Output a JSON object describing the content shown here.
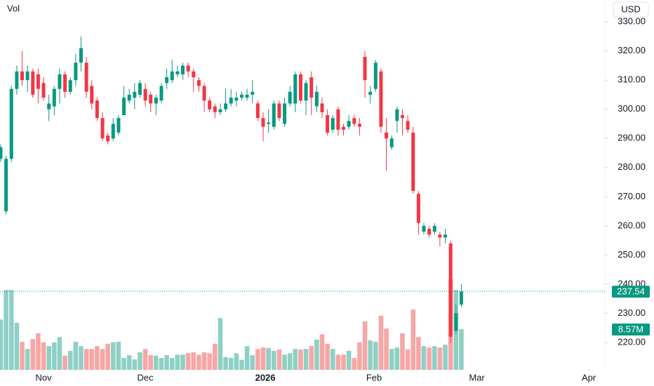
{
  "chart_data": {
    "type": "candlestick",
    "legend_label": "Vol",
    "currency": "USD",
    "up_color": "#089981",
    "down_color": "#f23645",
    "volume_up_color": "#8fd0c5",
    "volume_down_color": "#f7a6a6",
    "open": [
      283,
      265,
      283,
      307,
      313,
      310,
      313,
      312,
      309,
      300,
      301,
      307,
      312,
      306,
      310,
      316,
      316,
      308,
      303,
      297,
      291,
      290,
      292,
      298,
      303,
      304,
      305,
      307,
      305,
      302,
      303,
      309,
      310,
      312,
      312,
      315,
      313,
      310,
      308,
      303,
      301,
      299,
      300,
      302,
      303,
      304,
      304,
      305,
      302,
      297,
      295,
      294,
      302,
      295,
      302,
      302,
      312,
      303,
      311,
      301,
      302,
      298,
      293,
      300,
      294,
      294,
      297,
      295,
      318,
      305,
      307,
      313,
      292,
      287,
      296,
      298,
      296,
      292,
      271,
      258,
      259,
      258,
      257,
      256,
      254,
      224,
      233
    ],
    "high": [
      288,
      284,
      308,
      315,
      320,
      315,
      314,
      314,
      311,
      305,
      308,
      314,
      313,
      311,
      319,
      325,
      318,
      310,
      304,
      299,
      292,
      297,
      298,
      308,
      307,
      309,
      310,
      309,
      306,
      305,
      309,
      314,
      317,
      315,
      316,
      316,
      314,
      311,
      309,
      304,
      302,
      302,
      307,
      307,
      306,
      306,
      307,
      310,
      303,
      299,
      300,
      303,
      303,
      304,
      308,
      313,
      313,
      310,
      313,
      308,
      304,
      300,
      298,
      301,
      295,
      298,
      298,
      297,
      320,
      308,
      317,
      314,
      297,
      291,
      301,
      300,
      298,
      294,
      272,
      261,
      260,
      261,
      258,
      259,
      255,
      233,
      240
    ],
    "low": [
      282,
      264,
      282,
      305,
      308,
      306,
      304,
      302,
      303,
      296,
      298,
      302,
      304,
      305,
      308,
      313,
      304,
      300,
      296,
      289,
      288,
      289,
      291,
      298,
      302,
      300,
      304,
      301,
      299,
      298,
      302,
      307,
      309,
      311,
      310,
      311,
      306,
      306,
      299,
      299,
      297,
      298,
      299,
      301,
      301,
      303,
      303,
      302,
      296,
      289,
      292,
      293,
      296,
      294,
      301,
      299,
      302,
      298,
      298,
      299,
      297,
      291,
      292,
      291,
      291,
      293,
      294,
      291,
      304,
      302,
      306,
      292,
      279,
      286,
      292,
      291,
      292,
      271,
      257,
      257,
      256,
      257,
      253,
      254,
      220,
      223,
      232
    ],
    "close": [
      287,
      283,
      307,
      313,
      310,
      313,
      305,
      307,
      304,
      302,
      307,
      312,
      306,
      310,
      316,
      321,
      306,
      302,
      297,
      290,
      289,
      295,
      297,
      304,
      305,
      306,
      309,
      303,
      302,
      304,
      308,
      311,
      313,
      313,
      315,
      313,
      311,
      308,
      303,
      300,
      299,
      300,
      302,
      304,
      304,
      305,
      305,
      306,
      297,
      294,
      295.5,
      302,
      297,
      302,
      306,
      312,
      303,
      309,
      304,
      306,
      299,
      292,
      297,
      293,
      293,
      296,
      295,
      294,
      310,
      306,
      316,
      294,
      290,
      290,
      300,
      297,
      293,
      272,
      261,
      260,
      257,
      260,
      256,
      257,
      222,
      230,
      237.54
    ],
    "volume": [
      10.6,
      16.8,
      16.8,
      9.9,
      5.9,
      4.4,
      6.5,
      7.7,
      5.8,
      5.0,
      5.8,
      6.9,
      3.0,
      4.0,
      5.9,
      5.0,
      4.4,
      4.4,
      5.0,
      4.4,
      5.5,
      5.8,
      5.9,
      2.5,
      3.1,
      2.2,
      3.7,
      4.4,
      3.1,
      3.0,
      2.5,
      3.1,
      2.5,
      3.2,
      3.2,
      3.5,
      3.7,
      3.2,
      3.7,
      3.5,
      5.5,
      10.9,
      2.7,
      2.5,
      3.5,
      2.1,
      5.0,
      3.1,
      4.4,
      4.7,
      4.6,
      4.0,
      4.3,
      3.2,
      3.5,
      4.4,
      4.3,
      4.4,
      5.0,
      6.4,
      7.5,
      5.5,
      4.4,
      3.2,
      3.2,
      4.0,
      2.5,
      5.8,
      10.2,
      6.2,
      5.9,
      11.4,
      8.7,
      4.4,
      4.7,
      7.7,
      4.3,
      12.7,
      6.9,
      5.0,
      4.7,
      5.0,
      4.7,
      5.3,
      19.1,
      16.8,
      8.57
    ],
    "last_price": 237.54,
    "last_volume_label": "8.57M",
    "xlim": [
      -0.13,
      112.8
    ],
    "ylim": [
      210.6,
      337.5
    ],
    "xticks": [
      {
        "value": 8,
        "label": "Nov"
      },
      {
        "value": 27,
        "label": "Dec"
      },
      {
        "value": 49.4,
        "label": "2026"
      },
      {
        "value": 69.7,
        "label": "Feb"
      },
      {
        "value": 88.9,
        "label": "Mar"
      },
      {
        "value": 109.8,
        "label": "Apr"
      }
    ],
    "yticks": [
      {
        "value": 220,
        "label": "220.00"
      },
      {
        "value": 230,
        "label": "230.00"
      },
      {
        "value": 240,
        "label": "240.00"
      },
      {
        "value": 250,
        "label": "250.00"
      },
      {
        "value": 260,
        "label": "260.00"
      },
      {
        "value": 270,
        "label": "270.00"
      },
      {
        "value": 280,
        "label": "280.00"
      },
      {
        "value": 290,
        "label": "290.00"
      },
      {
        "value": 300,
        "label": "300.00"
      },
      {
        "value": 310,
        "label": "310.00"
      },
      {
        "value": 320,
        "label": "320.00"
      },
      {
        "value": 330,
        "label": "330.00"
      }
    ],
    "grid": false
  }
}
